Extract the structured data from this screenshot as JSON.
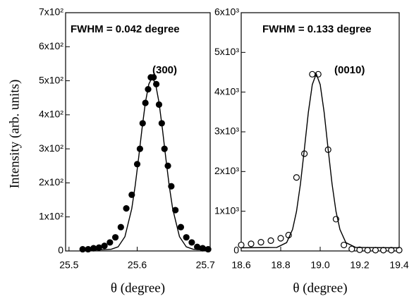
{
  "chart_data": [
    {
      "type": "scatter",
      "ylabel": "Intensity (arb. units)",
      "xlabel": "θ (degree)",
      "annotations": [
        "FWHM = 0.042 degree",
        "(300)"
      ],
      "xlim": [
        25.495,
        25.707
      ],
      "xticks": [
        25.5,
        25.6,
        25.7
      ],
      "ylim": [
        0,
        700
      ],
      "yticks": [
        0,
        {
          "value": 100,
          "label": "1x10²"
        },
        {
          "value": 200,
          "label": "2x10²"
        },
        {
          "value": 300,
          "label": "3x10²"
        },
        {
          "value": 400,
          "label": "4x10²"
        },
        {
          "value": 500,
          "label": "5x10²"
        },
        {
          "value": 600,
          "label": "6x10²"
        },
        {
          "value": 700,
          "label": "7x10²"
        }
      ],
      "series": [
        {
          "type": "scatter",
          "marker": "filled",
          "color": "#000000",
          "x": [
            25.52,
            25.528,
            25.536,
            25.544,
            25.552,
            25.56,
            25.568,
            25.576,
            25.584,
            25.592,
            25.6,
            25.604,
            25.608,
            25.612,
            25.616,
            25.62,
            25.624,
            25.628,
            25.632,
            25.636,
            25.64,
            25.645,
            25.65,
            25.656,
            25.664,
            25.672,
            25.68,
            25.688,
            25.696,
            25.704
          ],
          "values": [
            5,
            5,
            8,
            10,
            15,
            25,
            40,
            70,
            125,
            165,
            255,
            300,
            375,
            435,
            475,
            510,
            510,
            490,
            430,
            375,
            300,
            250,
            190,
            120,
            70,
            40,
            25,
            12,
            8,
            5
          ]
        },
        {
          "type": "line",
          "color": "#000000",
          "x": [
            25.52,
            25.542,
            25.562,
            25.572,
            25.582,
            25.592,
            25.597,
            25.602,
            25.607,
            25.612,
            25.617,
            25.622,
            25.627,
            25.632,
            25.637,
            25.642,
            25.647,
            25.652,
            25.662,
            25.672,
            25.682,
            25.702
          ],
          "values": [
            2,
            3,
            5,
            12,
            42,
            124,
            191,
            272,
            358,
            436,
            490,
            510,
            490,
            436,
            358,
            272,
            191,
            124,
            42,
            12,
            5,
            2
          ]
        }
      ]
    },
    {
      "type": "scatter",
      "xlabel": "θ (degree)",
      "annotations": [
        "FWHM = 0.133 degree",
        "(0010)"
      ],
      "xlim": [
        18.6,
        19.4
      ],
      "xticks": [
        18.6,
        18.8,
        {
          "value": 19,
          "label": "19.0"
        },
        19.2,
        19.4
      ],
      "ylim": [
        0,
        6000
      ],
      "yticks": [
        0,
        {
          "value": 1000,
          "label": "1x10³"
        },
        {
          "value": 2000,
          "label": "2x10³"
        },
        {
          "value": 3000,
          "label": "3x10³"
        },
        {
          "value": 4000,
          "label": "4x10³"
        },
        {
          "value": 5000,
          "label": "5x10³"
        },
        {
          "value": 6000,
          "label": "6x10³"
        }
      ],
      "series": [
        {
          "type": "scatter",
          "marker": "open",
          "color": "#000000",
          "x": [
            18.6,
            18.65,
            18.7,
            18.75,
            18.8,
            18.84,
            18.88,
            18.92,
            18.96,
            18.99,
            19.04,
            19.08,
            19.12,
            19.16,
            19.2,
            19.24,
            19.28,
            19.32,
            19.36,
            19.4
          ],
          "values": [
            150,
            180,
            220,
            260,
            320,
            400,
            1850,
            2450,
            4450,
            4450,
            2550,
            800,
            150,
            50,
            30,
            20,
            20,
            20,
            20,
            20
          ]
        },
        {
          "type": "line",
          "color": "#000000",
          "x": [
            18.6,
            18.78,
            18.83,
            18.86,
            18.88,
            18.9,
            18.92,
            18.94,
            18.96,
            18.98,
            19.0,
            19.02,
            19.04,
            19.06,
            19.08,
            19.1,
            19.13,
            19.18,
            19.4
          ],
          "values": [
            80,
            88,
            210,
            540,
            995,
            1690,
            2570,
            3490,
            4190,
            4460,
            4190,
            3490,
            2570,
            1690,
            995,
            540,
            210,
            88,
            80
          ]
        }
      ]
    }
  ]
}
